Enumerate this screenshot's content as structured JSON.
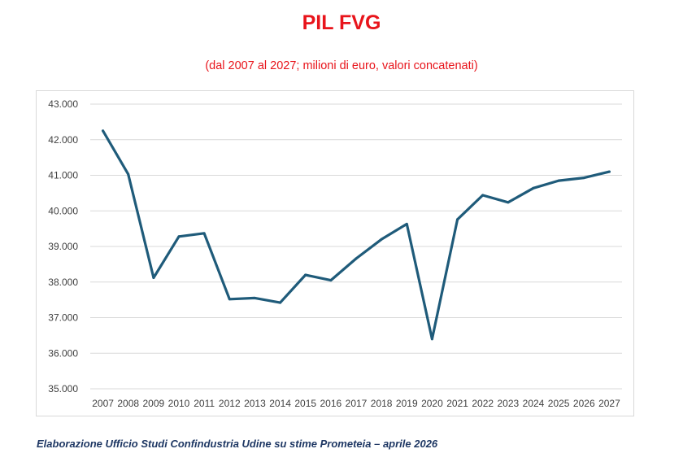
{
  "chart_data": {
    "type": "line",
    "title": "PIL FVG",
    "subtitle": "(dal 2007 al 2027; milioni di euro, valori concatenati)",
    "xlabel": "",
    "ylabel": "",
    "ylim": [
      35000,
      43000
    ],
    "yticks": [
      35000,
      36000,
      37000,
      38000,
      39000,
      40000,
      41000,
      42000,
      43000
    ],
    "ytick_labels": [
      "35.000",
      "36.000",
      "37.000",
      "38.000",
      "39.000",
      "40.000",
      "41.000",
      "42.000",
      "43.000"
    ],
    "grid": true,
    "legend": "none",
    "categories": [
      "2007",
      "2008",
      "2009",
      "2010",
      "2011",
      "2012",
      "2013",
      "2014",
      "2015",
      "2016",
      "2017",
      "2018",
      "2019",
      "2020",
      "2021",
      "2022",
      "2023",
      "2024",
      "2025",
      "2026",
      "2027"
    ],
    "series": [
      {
        "name": "PIL FVG",
        "color": "#1f5b7a",
        "values": [
          42250,
          41030,
          38120,
          39280,
          39370,
          37520,
          37550,
          37420,
          38200,
          38050,
          38660,
          39200,
          39630,
          36400,
          39760,
          40440,
          40240,
          40640,
          40850,
          40930,
          41100
        ]
      }
    ]
  },
  "footer": {
    "note": "Elaborazione Ufficio Studi Confindustria Udine su stime Prometeia – aprile 2026"
  }
}
